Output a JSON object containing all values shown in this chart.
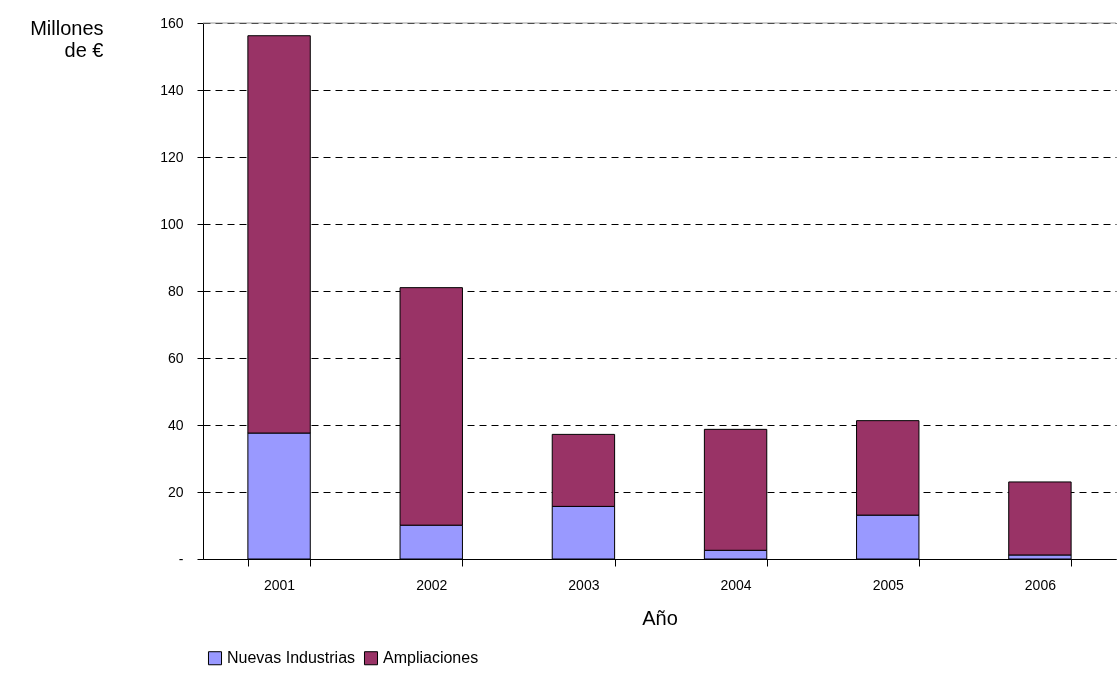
{
  "chart_data": {
    "type": "bar",
    "stacked": true,
    "xlabel": "Año",
    "ylabel": "Millones de €",
    "categories": [
      "2001",
      "2002",
      "2003",
      "2004",
      "2005",
      "2006"
    ],
    "series": [
      {
        "name": "Nuevas Industrias",
        "color": "#9999ff",
        "values": [
          37.6,
          10.1,
          15.7,
          2.6,
          13.1,
          1.2
        ]
      },
      {
        "name": "Ampliaciones",
        "color": "#993366",
        "values": [
          118.6,
          70.9,
          21.5,
          36.1,
          28.2,
          21.8
        ]
      }
    ],
    "ylim": [
      0,
      160
    ],
    "yticks": [
      {
        "value": 0,
        "label": "-"
      },
      20,
      40,
      60,
      80,
      100,
      120,
      140,
      160
    ],
    "grid": "y",
    "legend": "bottom"
  }
}
